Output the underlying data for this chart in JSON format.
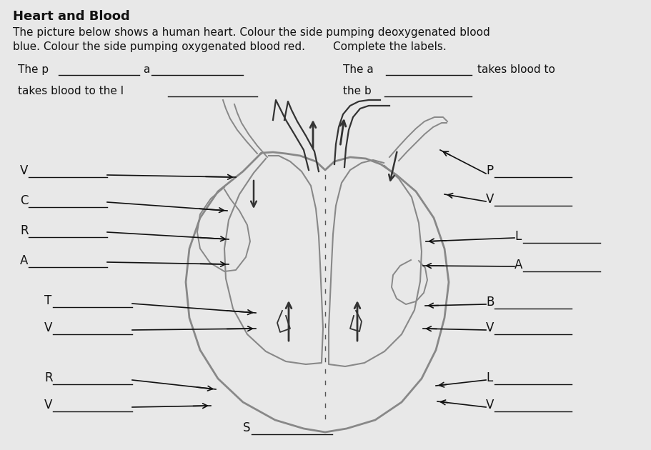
{
  "title": "Heart and Blood",
  "subtitle_line1": "The picture below shows a human heart. Colour the side pumping deoxygenated blood",
  "subtitle_line2": "blue. Colour the side pumping oxygenated blood red.        Complete the labels.",
  "bg_color": "#e8e8e8",
  "text_color": "#111111",
  "line_color": "#111111",
  "heart_gray": "#888888",
  "heart_dark": "#333333",
  "fig_width": 9.11,
  "fig_height": 6.3,
  "dpi": 100
}
